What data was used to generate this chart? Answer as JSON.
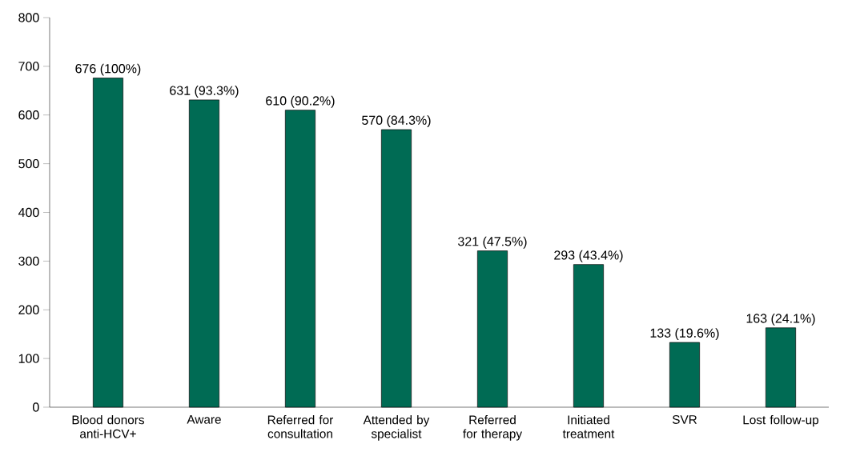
{
  "chart_data": {
    "type": "bar",
    "categories": [
      "Blood donors anti-HCV+",
      "Aware",
      "Referred for consultation",
      "Attended by specialist",
      "Referred for therapy",
      "Initiated treatment",
      "SVR",
      "Lost follow-up"
    ],
    "values": [
      676,
      631,
      610,
      570,
      321,
      293,
      133,
      163
    ],
    "value_labels": [
      "676 (100%)",
      "631 (93.3%)",
      "610 (90.2%)",
      "570 (84.3%)",
      "321 (47.5%)",
      "293 (43.4%)",
      "133 (19.6%)",
      "163 (24.1%)"
    ],
    "color": "#006b54",
    "ylim": [
      0,
      800
    ],
    "yticks": [
      0,
      100,
      200,
      300,
      400,
      500,
      600,
      700,
      800
    ]
  }
}
